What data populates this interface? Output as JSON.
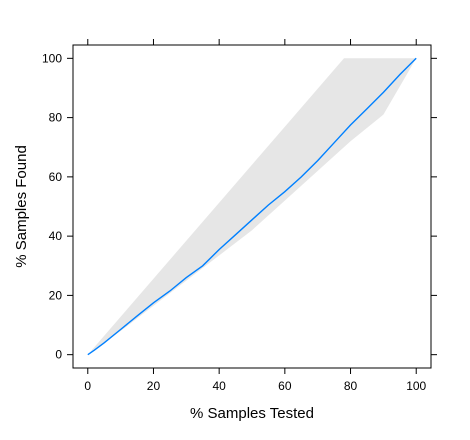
{
  "chart_data": {
    "type": "line",
    "title": "",
    "xlabel": "% Samples Tested",
    "ylabel": "% Samples Found",
    "xlim": [
      -4.5,
      104.5
    ],
    "ylim": [
      -4.5,
      104.5
    ],
    "x_ticks": [
      0,
      20,
      40,
      60,
      80,
      100
    ],
    "y_ticks": [
      0,
      20,
      40,
      60,
      80,
      100
    ],
    "grid": false,
    "shaded_region": {
      "upper": [
        [
          0,
          0
        ],
        [
          78,
          100
        ],
        [
          100,
          100
        ]
      ],
      "lower": [
        [
          0,
          0
        ],
        [
          10,
          8
        ],
        [
          20,
          16.5
        ],
        [
          30,
          25
        ],
        [
          40,
          33.5
        ],
        [
          50,
          42
        ],
        [
          55,
          47
        ],
        [
          60,
          52
        ],
        [
          70,
          62
        ],
        [
          80,
          72
        ],
        [
          90,
          81
        ],
        [
          100,
          100
        ]
      ]
    },
    "series": [
      {
        "color": "#0080ff",
        "x": [
          0,
          2,
          5,
          10,
          15,
          20,
          25,
          30,
          35,
          40,
          45,
          50,
          55,
          60,
          65,
          70,
          75,
          80,
          85,
          90,
          95,
          100
        ],
        "y": [
          0,
          1.5,
          4,
          8.5,
          13,
          17.5,
          21.5,
          26,
          30,
          35.5,
          40.5,
          45.5,
          50.5,
          55,
          60,
          65.5,
          71.5,
          77.5,
          83,
          88.5,
          94.5,
          100
        ]
      }
    ],
    "colors": {
      "shade": "#e6e6e6",
      "axis": "#000000"
    }
  }
}
